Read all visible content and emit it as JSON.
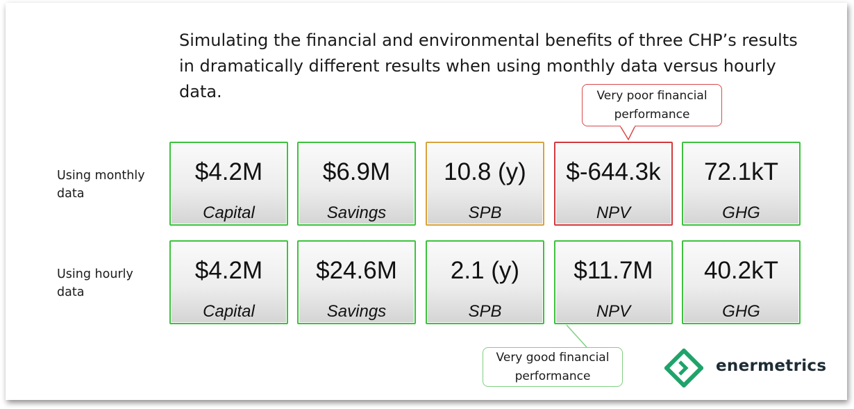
{
  "headline": "Simulating the financial and environmental benefits of three CHP’s results in dramatically different results when using monthly data versus hourly data.",
  "rows": [
    {
      "label": "Using monthly data",
      "tiles": [
        {
          "value": "$4.2M",
          "metric": "Capital",
          "status": "green"
        },
        {
          "value": "$6.9M",
          "metric": "Savings",
          "status": "green"
        },
        {
          "value": "10.8 (y)",
          "metric": "SPB",
          "status": "orange"
        },
        {
          "value": "$-644.3k",
          "metric": "NPV",
          "status": "red"
        },
        {
          "value": "72.1kT",
          "metric": "GHG",
          "status": "green"
        }
      ]
    },
    {
      "label": "Using hourly data",
      "tiles": [
        {
          "value": "$4.2M",
          "metric": "Capital",
          "status": "green"
        },
        {
          "value": "$24.6M",
          "metric": "Savings",
          "status": "green"
        },
        {
          "value": "2.1 (y)",
          "metric": "SPB",
          "status": "green"
        },
        {
          "value": "$11.7M",
          "metric": "NPV",
          "status": "green"
        },
        {
          "value": "40.2kT",
          "metric": "GHG",
          "status": "green"
        }
      ]
    }
  ],
  "callouts": {
    "poor": {
      "line1": "Very poor financial",
      "line2": "performance"
    },
    "good": {
      "line1": "Very good financial",
      "line2": "performance"
    }
  },
  "logo": {
    "text": "enermetrics",
    "icon": "enermetrics-diamond-icon"
  },
  "colors": {
    "green": "#3cc23c",
    "orange": "#d9a23a",
    "red": "#d2383d",
    "logo_green": "#1fa36b"
  }
}
